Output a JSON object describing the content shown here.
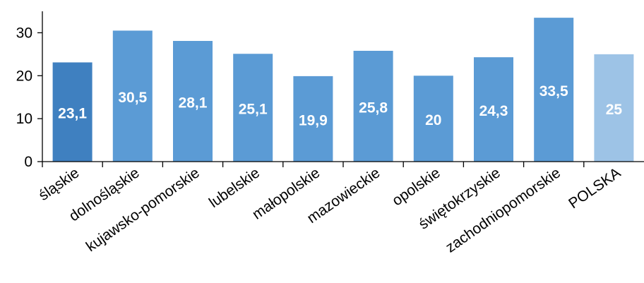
{
  "chart_data": {
    "type": "bar",
    "categories": [
      "śląskie",
      "dolnośląskie",
      "kujawsko-pomorskie",
      "lubelskie",
      "małopolskie",
      "mazowieckie",
      "opolskie",
      "świętokrzyskie",
      "zachodniopomorskie",
      "POLSKA"
    ],
    "values": [
      23.1,
      30.5,
      28.1,
      25.1,
      19.9,
      25.8,
      20,
      24.3,
      33.5,
      25
    ],
    "data_labels": [
      "23,1",
      "30,5",
      "28,1",
      "25,1",
      "19,9",
      "25,8",
      "20",
      "24,3",
      "33,5",
      "25"
    ],
    "bar_colors": [
      "#3F80C0",
      "#5B9BD5",
      "#5B9BD5",
      "#5B9BD5",
      "#5B9BD5",
      "#5B9BD5",
      "#5B9BD5",
      "#5B9BD5",
      "#5B9BD5",
      "#9DC3E6"
    ],
    "title": "",
    "xlabel": "",
    "ylabel": "",
    "ylim": [
      0,
      35
    ],
    "yticks": [
      0,
      10,
      20,
      30
    ],
    "grid": false,
    "legend": "none"
  }
}
